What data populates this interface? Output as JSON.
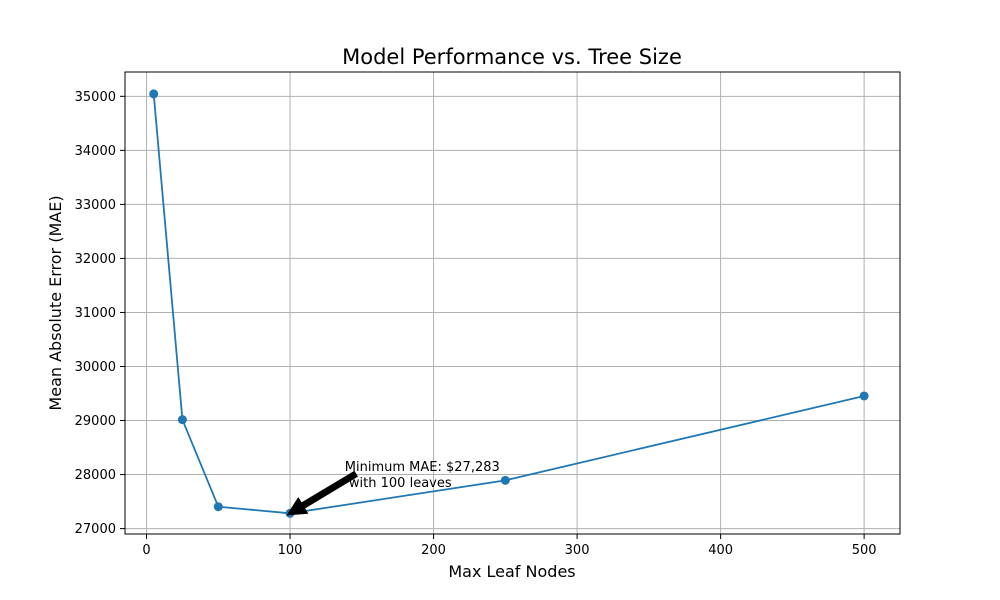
{
  "chart_data": {
    "type": "line",
    "title": "Model Performance vs. Tree Size",
    "xlabel": "Max Leaf Nodes",
    "ylabel": "Mean Absolute Error (MAE)",
    "x": [
      5,
      25,
      50,
      100,
      250,
      500
    ],
    "series": [
      {
        "values": [
          35045,
          29016,
          27405,
          27283,
          27893,
          29454
        ],
        "color": "#1f77b4"
      }
    ],
    "xlim": [
      -15,
      525
    ],
    "ylim": [
      26900,
      35450
    ],
    "x_ticks": [
      0,
      100,
      200,
      300,
      400,
      500
    ],
    "y_ticks": [
      27000,
      28000,
      29000,
      30000,
      31000,
      32000,
      33000,
      34000,
      35000
    ],
    "grid": true,
    "annotation": {
      "line1": "Minimum MAE: $27,283",
      "line2": " with 100 leaves",
      "point": {
        "x": 100,
        "y": 27283
      },
      "text_anchor": {
        "x": 150,
        "y": 27900
      }
    }
  }
}
